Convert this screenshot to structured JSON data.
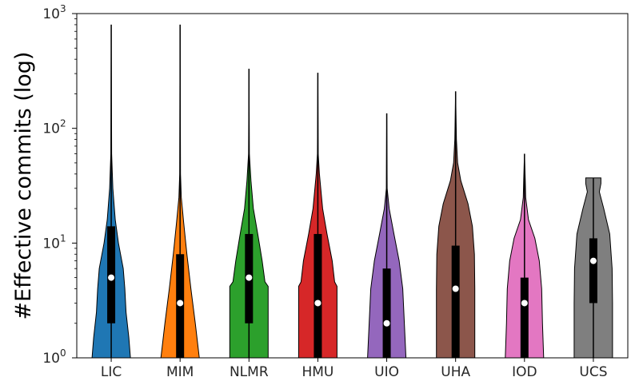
{
  "chart_data": {
    "type": "violin",
    "ylabel": "#Effective commits (log)",
    "yscale": "log",
    "ylim": [
      1,
      1000
    ],
    "yticks": [
      {
        "value": 1,
        "base": "10",
        "exp": "0"
      },
      {
        "value": 10,
        "base": "10",
        "exp": "1"
      },
      {
        "value": 100,
        "base": "10",
        "exp": "2"
      },
      {
        "value": 1000,
        "base": "10",
        "exp": "3"
      }
    ],
    "categories": [
      "LIC",
      "MIM",
      "NLMR",
      "HMU",
      "UIO",
      "UHA",
      "IOD",
      "UCS"
    ],
    "colors": [
      "#1f77b4",
      "#ff7f0e",
      "#2ca02c",
      "#d62728",
      "#9467bd",
      "#8c564b",
      "#e377c2",
      "#7f7f7f"
    ],
    "series": [
      {
        "category": "LIC",
        "min": 1,
        "q1": 2,
        "median": 5,
        "q3": 14,
        "max": 800,
        "density": [
          [
            1,
            0.48
          ],
          [
            1.5,
            0.44
          ],
          [
            2.5,
            0.37
          ],
          [
            4,
            0.34
          ],
          [
            6,
            0.3
          ],
          [
            10,
            0.18
          ],
          [
            16,
            0.1
          ],
          [
            30,
            0.04
          ],
          [
            60,
            0.01
          ],
          [
            800,
            0
          ]
        ]
      },
      {
        "category": "MIM",
        "min": 1,
        "q1": 1,
        "median": 3,
        "q3": 8,
        "max": 800,
        "density": [
          [
            1,
            0.48
          ],
          [
            2,
            0.38
          ],
          [
            4,
            0.27
          ],
          [
            8,
            0.17
          ],
          [
            15,
            0.09
          ],
          [
            25,
            0.03
          ],
          [
            40,
            0.01
          ],
          [
            800,
            0
          ]
        ]
      },
      {
        "category": "NLMR",
        "min": 1,
        "q1": 2,
        "median": 5,
        "q3": 12,
        "max": 330,
        "density": [
          [
            1,
            0.48
          ],
          [
            4.2,
            0.48
          ],
          [
            4.6,
            0.4
          ],
          [
            7,
            0.33
          ],
          [
            12,
            0.22
          ],
          [
            20,
            0.11
          ],
          [
            35,
            0.05
          ],
          [
            60,
            0.01
          ],
          [
            330,
            0
          ]
        ]
      },
      {
        "category": "HMU",
        "min": 1,
        "q1": 1,
        "median": 3,
        "q3": 12,
        "max": 305,
        "density": [
          [
            1,
            0.48
          ],
          [
            4.2,
            0.48
          ],
          [
            4.6,
            0.42
          ],
          [
            7,
            0.36
          ],
          [
            12,
            0.23
          ],
          [
            20,
            0.12
          ],
          [
            40,
            0.04
          ],
          [
            60,
            0.01
          ],
          [
            305,
            0
          ]
        ]
      },
      {
        "category": "UIO",
        "min": 1,
        "q1": 1,
        "median": 2,
        "q3": 6,
        "max": 135,
        "density": [
          [
            1,
            0.48
          ],
          [
            2,
            0.44
          ],
          [
            4,
            0.4
          ],
          [
            7,
            0.31
          ],
          [
            12,
            0.18
          ],
          [
            20,
            0.06
          ],
          [
            30,
            0.01
          ],
          [
            135,
            0
          ]
        ]
      },
      {
        "category": "UHA",
        "min": 1,
        "q1": 1,
        "median": 4,
        "q3": 9.5,
        "max": 210,
        "density": [
          [
            1,
            0.48
          ],
          [
            2,
            0.48
          ],
          [
            4,
            0.48
          ],
          [
            8,
            0.47
          ],
          [
            14,
            0.42
          ],
          [
            22,
            0.31
          ],
          [
            35,
            0.13
          ],
          [
            50,
            0.05
          ],
          [
            80,
            0.02
          ],
          [
            210,
            0
          ]
        ]
      },
      {
        "category": "IOD",
        "min": 1,
        "q1": 1,
        "median": 3,
        "q3": 5,
        "max": 60,
        "density": [
          [
            1,
            0.48
          ],
          [
            2,
            0.45
          ],
          [
            4,
            0.43
          ],
          [
            7,
            0.37
          ],
          [
            11,
            0.26
          ],
          [
            16,
            0.1
          ],
          [
            25,
            0.03
          ],
          [
            35,
            0.02
          ],
          [
            60,
            0
          ]
        ]
      },
      {
        "category": "UCS",
        "min": 1,
        "q1": 3,
        "median": 7,
        "q3": 11,
        "max": 37,
        "density": [
          [
            1,
            0.48
          ],
          [
            3,
            0.48
          ],
          [
            6,
            0.47
          ],
          [
            12,
            0.41
          ],
          [
            20,
            0.26
          ],
          [
            28,
            0.15
          ],
          [
            33,
            0.19
          ],
          [
            37,
            0.19
          ]
        ]
      }
    ]
  }
}
